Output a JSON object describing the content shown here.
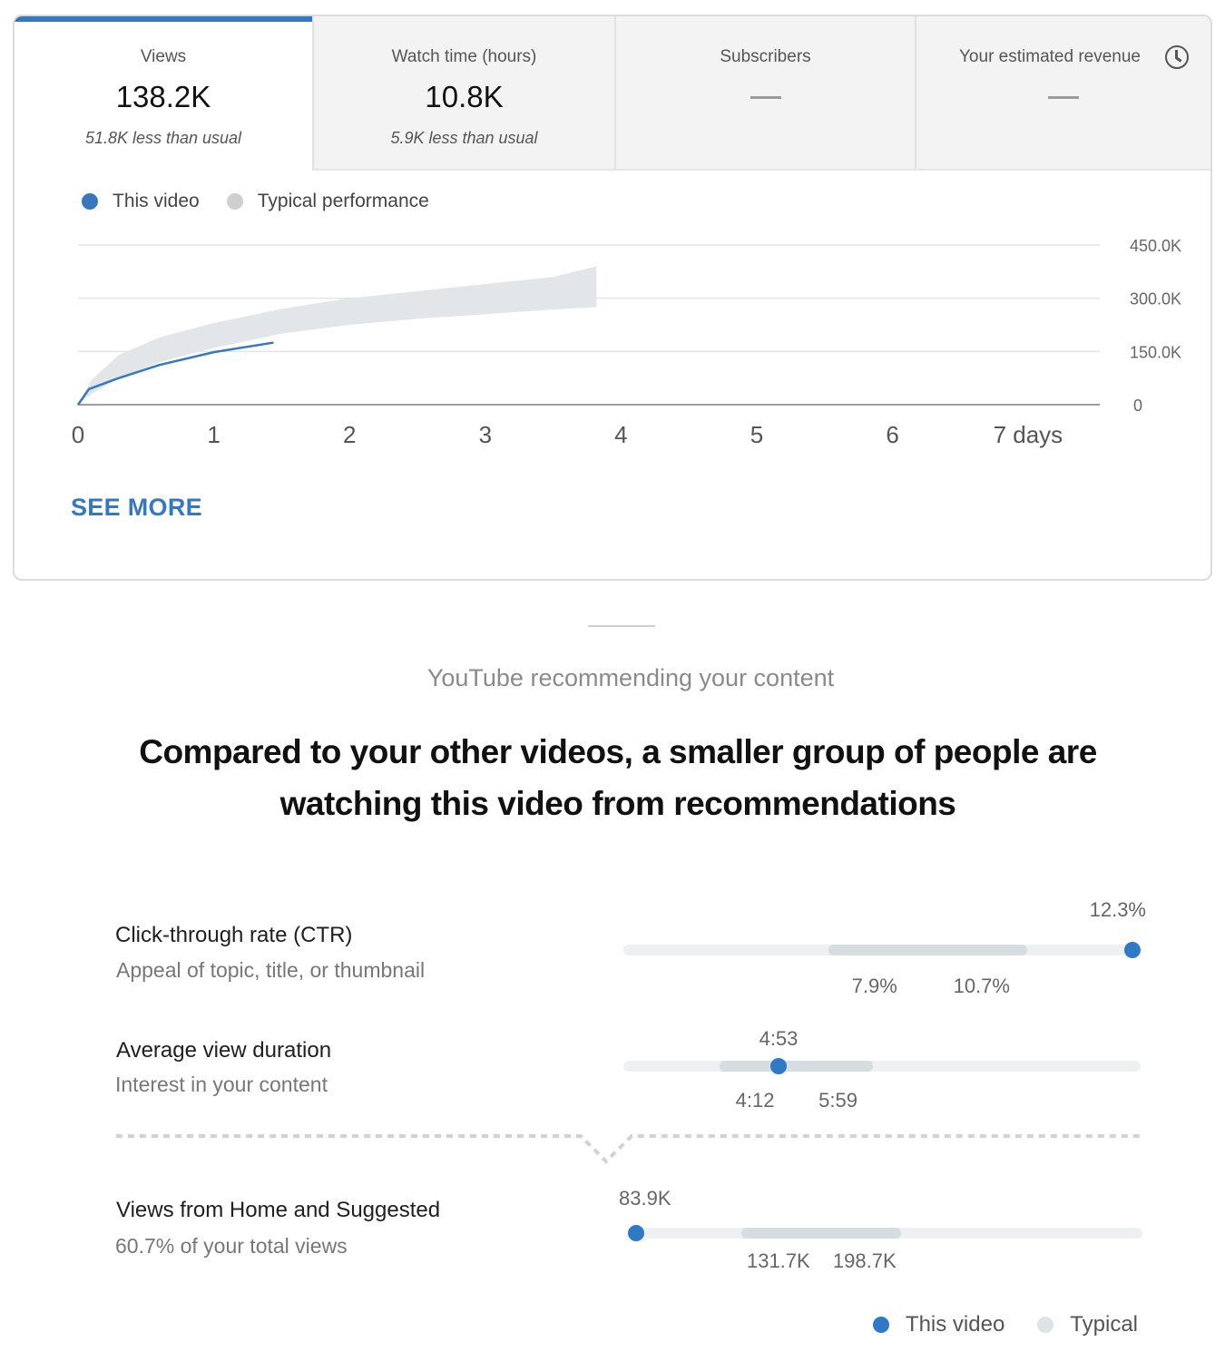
{
  "tabs": [
    {
      "label": "Views",
      "value": "138.2K",
      "note": "51.8K less than usual"
    },
    {
      "label": "Watch time (hours)",
      "value": "10.8K",
      "note": "5.9K less than usual"
    },
    {
      "label": "Subscribers",
      "value": "—",
      "note": ""
    },
    {
      "label": "Your estimated revenue",
      "value": "—",
      "note": "",
      "icon": "clock-icon"
    }
  ],
  "legend": {
    "this_video": "This video",
    "typical": "Typical performance"
  },
  "colors": {
    "accent": "#3578c0",
    "marker": "#2f7ac5",
    "typical_band": "#e3e6e8",
    "range": "#d6dde0"
  },
  "chart_data": {
    "type": "line",
    "x_ticks": [
      "0",
      "1",
      "2",
      "3",
      "4",
      "5",
      "6",
      "7 days"
    ],
    "y_ticks": [
      "450.0K",
      "300.0K",
      "150.0K",
      "0"
    ],
    "xlim": [
      0,
      7.5
    ],
    "ylim": [
      0,
      450000
    ],
    "series": [
      {
        "name": "This video",
        "x": [
          0,
          0.08,
          0.3,
          0.6,
          1.0,
          1.44
        ],
        "y": [
          0,
          44000,
          75000,
          112000,
          148000,
          175000
        ]
      },
      {
        "name": "Typical performance",
        "type": "band",
        "x": [
          0,
          0.1,
          0.3,
          0.6,
          1.0,
          1.5,
          2.0,
          2.5,
          3.0,
          3.5,
          3.82
        ],
        "upper": [
          0,
          70000,
          140000,
          190000,
          230000,
          270000,
          300000,
          320000,
          340000,
          360000,
          390000
        ],
        "lower": [
          0,
          30000,
          75000,
          120000,
          160000,
          200000,
          225000,
          242000,
          255000,
          268000,
          275000
        ]
      }
    ],
    "grid": true
  },
  "see_more": "SEE MORE",
  "section": {
    "label": "YouTube recommending your content",
    "headline": "Compared to your other videos, a smaller group of people are watching this video from recommendations"
  },
  "metrics": [
    {
      "title": "Click-through rate (CTR)",
      "subtitle": "Appeal of topic, title, or thumbnail",
      "value": "12.3%",
      "low": "7.9%",
      "high": "10.7%",
      "value_num": 12.3,
      "low_num": 7.9,
      "high_num": 10.7,
      "min": 5.0,
      "max": 12.3
    },
    {
      "title": "Average view duration",
      "subtitle": "Interest in your content",
      "value": "4:53",
      "low": "4:12",
      "high": "5:59",
      "value_num": 293,
      "low_num": 252,
      "high_num": 359,
      "min": 185,
      "max": 545
    },
    {
      "title": "Views from Home and Suggested",
      "subtitle": "60.7% of your total views",
      "value": "83.9K",
      "low": "131.7K",
      "high": "198.7K",
      "value_num": 83900,
      "low_num": 131700,
      "high_num": 198700,
      "min": 83900,
      "max": 300000
    }
  ],
  "bottom_legend": {
    "this_video": "This video",
    "typical": "Typical"
  }
}
